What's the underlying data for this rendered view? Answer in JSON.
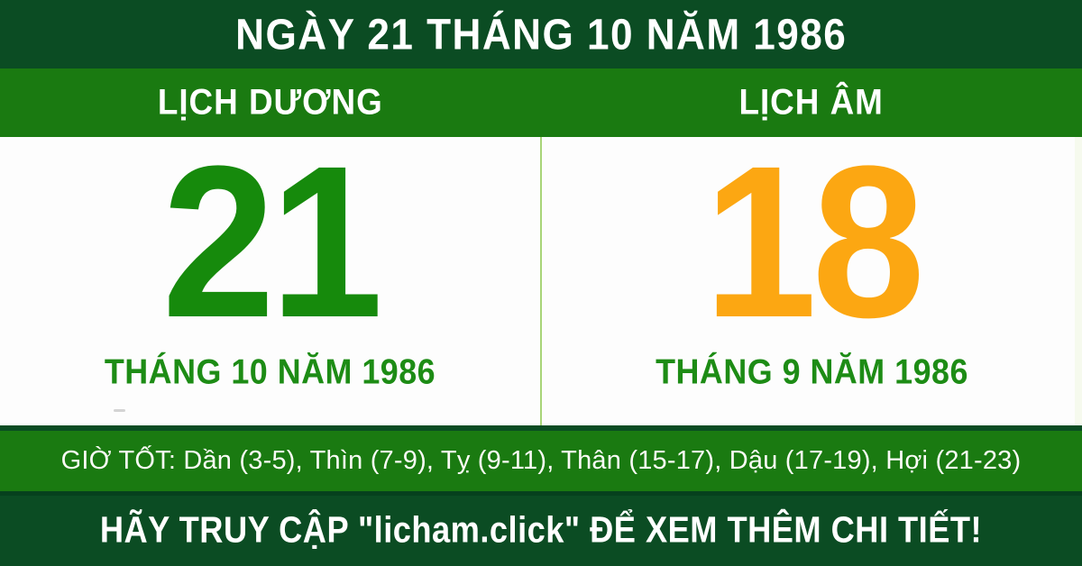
{
  "header": {
    "title": "NGÀY 21 THÁNG 10 NĂM 1986"
  },
  "calendars": {
    "solar": {
      "label": "LỊCH DƯƠNG",
      "day": "21",
      "month_year": "THÁNG 10 NĂM 1986"
    },
    "lunar": {
      "label": "LỊCH ÂM",
      "day": "18",
      "month_year": "THÁNG 9 NĂM 1986"
    }
  },
  "good_hours": {
    "label": "GIỜ TỐT:",
    "entries": [
      "Dần (3-5)",
      "Thìn (7-9)",
      "Tỵ (9-11)",
      "Thân (15-17)",
      "Dậu (17-19)",
      "Hợi (21-23)"
    ]
  },
  "footer": {
    "cta": "HÃY TRUY CẬP \"licham.click\" ĐỂ XEM THÊM CHI TIẾT!"
  },
  "colors": {
    "dark_green": "#0b4c23",
    "bar_green": "#1a7a11",
    "solar_day_green": "#168a0c",
    "lunar_day_orange": "#fca712",
    "month_green": "#1d8c15",
    "divider_light_green": "#a8d578",
    "text_white": "#ffffff"
  }
}
